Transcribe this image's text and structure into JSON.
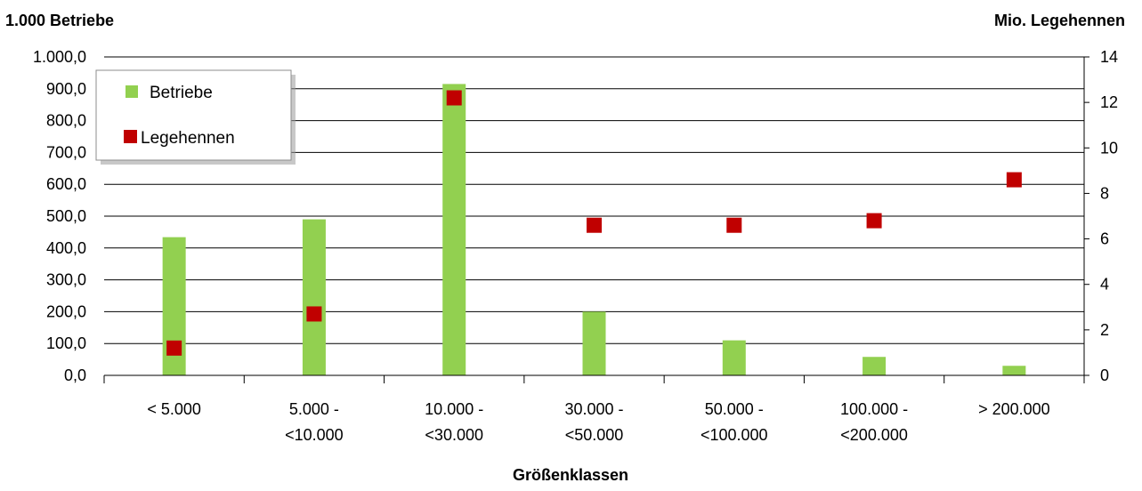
{
  "chart_data": {
    "type": "bar",
    "categories": [
      [
        "< 5.000"
      ],
      [
        "5.000 -",
        "<10.000"
      ],
      [
        "10.000 -",
        "<30.000"
      ],
      [
        "30.000 -",
        "<50.000"
      ],
      [
        "50.000 -",
        "<100.000"
      ],
      [
        "100.000 -",
        "<200.000"
      ],
      [
        "> 200.000"
      ]
    ],
    "series": [
      {
        "name": "Betriebe",
        "kind": "bar",
        "axis": "left",
        "color": "#92d050",
        "values": [
          434,
          490,
          915,
          200,
          110,
          58,
          30
        ]
      },
      {
        "name": "Legehennen",
        "kind": "marker",
        "axis": "right",
        "color": "#c00000",
        "values": [
          1.2,
          2.7,
          12.2,
          6.6,
          6.6,
          6.8,
          8.6
        ]
      }
    ],
    "title": "",
    "xlabel": "Größenklassen",
    "ylabel_left": "1.000 Betriebe",
    "ylabel_right": "Mio. Legehennen",
    "ylim_left": [
      0,
      1000
    ],
    "ylim_right": [
      0,
      14
    ],
    "yticks_left": [
      "0,0",
      "100,0",
      "200,0",
      "300,0",
      "400,0",
      "500,0",
      "600,0",
      "700,0",
      "800,0",
      "900,0",
      "1.000,0"
    ],
    "yticks_right": [
      "0",
      "2",
      "4",
      "6",
      "8",
      "10",
      "12",
      "14"
    ],
    "grid": true,
    "legend_position": "top-left"
  }
}
